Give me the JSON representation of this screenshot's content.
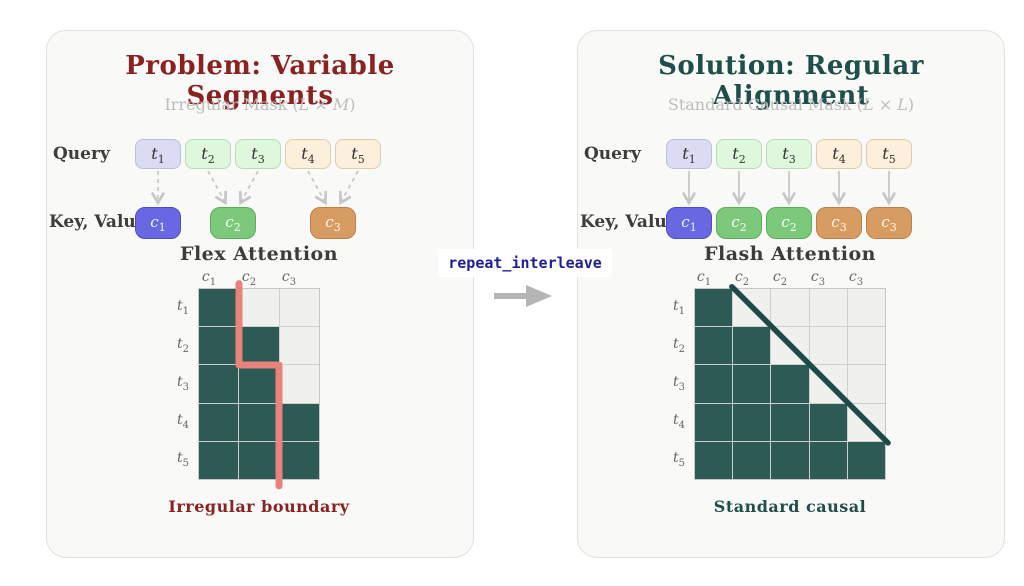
{
  "colors": {
    "page_bg": "#ffffff",
    "panel_bg": "#f9f9f8",
    "panel_border": "#e0e0de",
    "problem_accent": "#8b2222",
    "solution_accent": "#1f4e4b",
    "subtitle_gray": "#bdbdbd",
    "label_dark": "#3c3c3c",
    "mask_fill_teal": "#2e5a55",
    "mask_empty": "#f0f0ee",
    "grid_line": "#cfcfcd",
    "boundary_red": "#e8827b",
    "causal_diagonal_teal": "#1d4a47",
    "arrow_gray": "#c9c9c9",
    "center_arrow_gray": "#b5b5b5",
    "code_navy": "#1e1e96",
    "chip_lavender": "#dbdbf4",
    "chip_light_green": "#def7dd",
    "chip_peach": "#fcefdc",
    "chip_blue": "#6967e2",
    "chip_green": "#7cc97c",
    "chip_orange": "#d79c61"
  },
  "center": {
    "code_label": "repeat_interleave",
    "arrow_icon": "right-arrow"
  },
  "panels": {
    "left": {
      "title": "Problem: Variable Segments",
      "subtitle": {
        "pre": "Irregular Mask (",
        "var1": "L",
        "times": " × ",
        "var2": "M",
        "post": ")"
      },
      "query_label": "Query",
      "kv_label": "Key, Value",
      "attention_title": "Flex Attention",
      "caption": "Irregular boundary",
      "query_tokens": [
        {
          "base": "t",
          "sub": "1",
          "color": "lavender"
        },
        {
          "base": "t",
          "sub": "2",
          "color": "green-light"
        },
        {
          "base": "t",
          "sub": "3",
          "color": "green-light"
        },
        {
          "base": "t",
          "sub": "4",
          "color": "peach"
        },
        {
          "base": "t",
          "sub": "5",
          "color": "peach"
        }
      ],
      "kv_tokens": [
        {
          "base": "c",
          "sub": "1",
          "color": "blue",
          "slot": 0
        },
        {
          "base": "c",
          "sub": "2",
          "color": "green",
          "slot": 1.5
        },
        {
          "base": "c",
          "sub": "3",
          "color": "orange",
          "slot": 3.5
        }
      ],
      "arrow_map": [
        [
          0,
          0
        ],
        [
          1,
          1
        ],
        [
          2,
          1
        ],
        [
          3,
          2
        ],
        [
          4,
          2
        ]
      ],
      "arrow_style": "dashed",
      "grid": {
        "cols": 3,
        "rows": 5,
        "col_headers": [
          {
            "base": "c",
            "sub": "1"
          },
          {
            "base": "c",
            "sub": "2"
          },
          {
            "base": "c",
            "sub": "3"
          }
        ],
        "row_headers": [
          {
            "base": "t",
            "sub": "1"
          },
          {
            "base": "t",
            "sub": "2"
          },
          {
            "base": "t",
            "sub": "3"
          },
          {
            "base": "t",
            "sub": "4"
          },
          {
            "base": "t",
            "sub": "5"
          }
        ],
        "fills": [
          [
            1,
            0,
            0
          ],
          [
            1,
            1,
            0
          ],
          [
            1,
            1,
            0
          ],
          [
            1,
            1,
            1
          ],
          [
            1,
            1,
            1
          ]
        ],
        "overlay": {
          "name": "irregular-boundary-line",
          "color": "#e8827b",
          "width": 7,
          "points_cells": [
            [
              1,
              -0.14
            ],
            [
              1,
              2
            ],
            [
              2,
              2
            ],
            [
              2,
              5.18
            ]
          ]
        }
      }
    },
    "right": {
      "title": "Solution: Regular Alignment",
      "subtitle": {
        "pre": "Standard Causal Mask (",
        "var1": "L",
        "times": " × ",
        "var2": "L",
        "post": ")"
      },
      "query_label": "Query",
      "kv_label": "Key, Value",
      "attention_title": "Flash Attention",
      "caption": "Standard causal",
      "query_tokens": [
        {
          "base": "t",
          "sub": "1",
          "color": "lavender"
        },
        {
          "base": "t",
          "sub": "2",
          "color": "green-light"
        },
        {
          "base": "t",
          "sub": "3",
          "color": "green-light"
        },
        {
          "base": "t",
          "sub": "4",
          "color": "peach"
        },
        {
          "base": "t",
          "sub": "5",
          "color": "peach"
        }
      ],
      "kv_tokens": [
        {
          "base": "c",
          "sub": "1",
          "color": "blue",
          "slot": 0
        },
        {
          "base": "c",
          "sub": "2",
          "color": "green",
          "slot": 1
        },
        {
          "base": "c",
          "sub": "2",
          "color": "green",
          "slot": 2
        },
        {
          "base": "c",
          "sub": "3",
          "color": "orange",
          "slot": 3
        },
        {
          "base": "c",
          "sub": "3",
          "color": "orange",
          "slot": 4
        }
      ],
      "arrow_map": [
        [
          0,
          0
        ],
        [
          1,
          1
        ],
        [
          2,
          2
        ],
        [
          3,
          3
        ],
        [
          4,
          4
        ]
      ],
      "arrow_style": "solid",
      "grid": {
        "cols": 5,
        "rows": 5,
        "col_headers": [
          {
            "base": "c",
            "sub": "1"
          },
          {
            "base": "c",
            "sub": "2"
          },
          {
            "base": "c",
            "sub": "2"
          },
          {
            "base": "c",
            "sub": "3"
          },
          {
            "base": "c",
            "sub": "3"
          }
        ],
        "row_headers": [
          {
            "base": "t",
            "sub": "1"
          },
          {
            "base": "t",
            "sub": "2"
          },
          {
            "base": "t",
            "sub": "3"
          },
          {
            "base": "t",
            "sub": "4"
          },
          {
            "base": "t",
            "sub": "5"
          }
        ],
        "fills": [
          [
            1,
            0,
            0,
            0,
            0
          ],
          [
            1,
            1,
            0,
            0,
            0
          ],
          [
            1,
            1,
            1,
            0,
            0
          ],
          [
            1,
            1,
            1,
            1,
            0
          ],
          [
            1,
            1,
            1,
            1,
            1
          ]
        ],
        "overlay": {
          "name": "causal-diagonal-line",
          "color": "#1d4a47",
          "width": 5.5,
          "points_cells": [
            [
              0.97,
              -0.06
            ],
            [
              5.08,
              4.05
            ]
          ]
        }
      }
    }
  }
}
